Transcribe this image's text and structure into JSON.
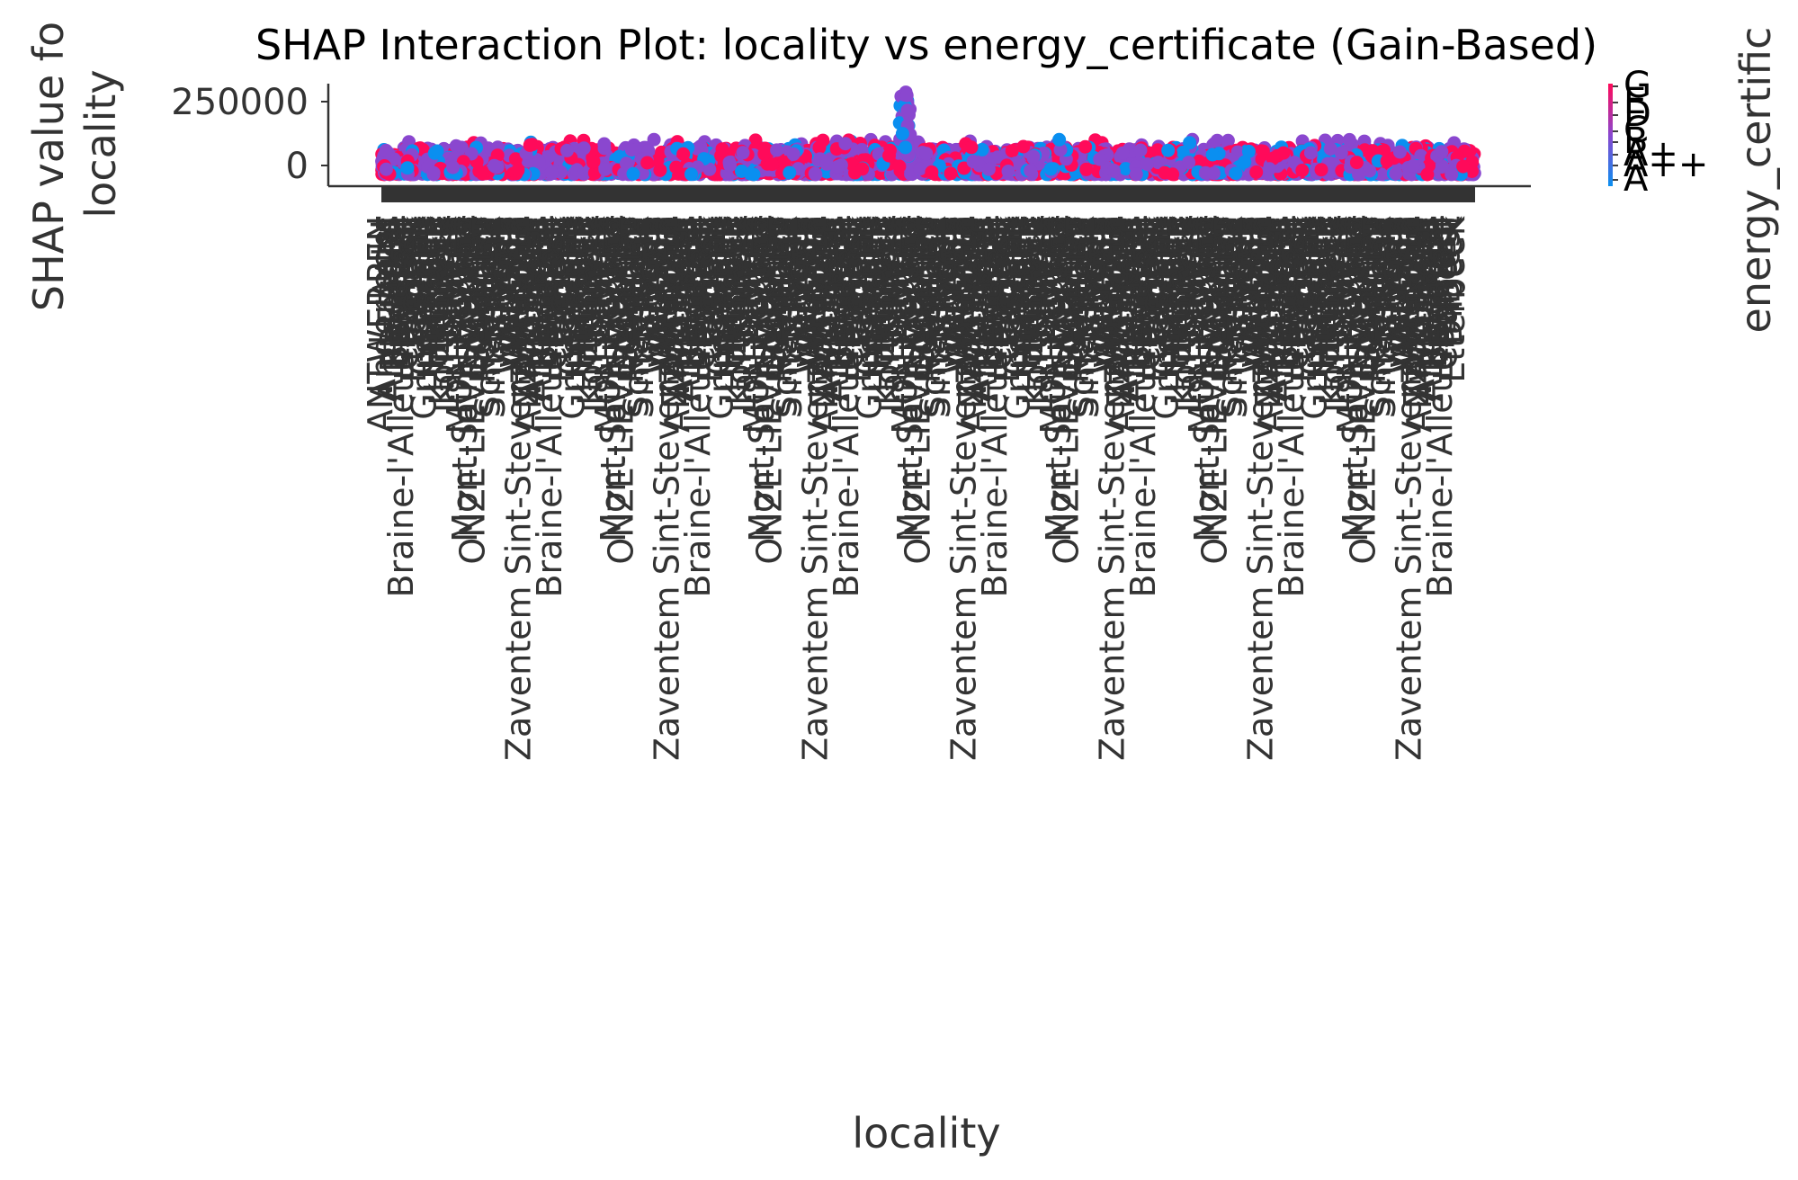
{
  "chart_data": {
    "type": "scatter",
    "title": "SHAP Interaction Plot: locality vs energy_certificate (Gain-Based)",
    "xlabel": "locality",
    "ylabel_line1": "SHAP value fo",
    "ylabel_line2": "locality",
    "ylim": [
      -75000,
      320000
    ],
    "yticks": [
      {
        "value": 250000,
        "label": "250000"
      },
      {
        "value": 0,
        "label": "0"
      }
    ],
    "grid": false,
    "x_categories_visible": [
      "ANTWERPEN",
      "Anderlecht",
      "Aalst",
      "Ans",
      "Antwerpen",
      "BRUSSEL",
      "Berchem",
      "Beersel",
      "Braine-l'Alleud Ophain",
      "Bornem",
      "Charleroi",
      "Diest",
      "Dilbeek",
      "Etterbeek",
      "GAND",
      "Genk",
      "Gent Sint",
      "Grimbergen",
      "Habay",
      "Hasselt",
      "Hermalle",
      "Hulshout",
      "Houthalen",
      "Knokke",
      "Kortenberg",
      "Kortrijk",
      "La Louvière",
      "Leuven",
      "Liège",
      "Lier",
      "Lasne",
      "MONTIGNIES",
      "Mons",
      "Mont-Saint-Guibert",
      "NIVELLES",
      "Namur",
      "ONZE-LIEVE-VROUW",
      "Oostende",
      "Ottignies",
      "Overijse",
      "Roeselare",
      "SINT",
      "Schaerbeek",
      "Seraing",
      "Sint-Niklaas",
      "Spa",
      "Tournai",
      "Uccle",
      "Verviers",
      "Vilvoorde",
      "WAVRE",
      "WOLUWE",
      "Waterloo",
      "Wemmel",
      "Zaventem Sint-Stevens-Woluwe",
      "Zele",
      "Zottegem",
      "Zwijnaarde"
    ],
    "hue": {
      "name": "energy_certificate",
      "label_visible": "energy_certific",
      "levels": [
        "G",
        "F",
        "E",
        "D",
        "C",
        "B",
        "A",
        "A+",
        "A++"
      ],
      "visible_ticks": [
        "G",
        "E",
        "D",
        "C",
        "B",
        "A+",
        "A++",
        "A"
      ],
      "colors": {
        "low": "#0a8ff0",
        "mid": "#8a47cf",
        "high": "#ff0a5a"
      }
    },
    "point_count_estimate": 3200,
    "value_spread": {
      "typical_min": -30000,
      "typical_max": 75000,
      "outlier_max": 295000
    }
  }
}
